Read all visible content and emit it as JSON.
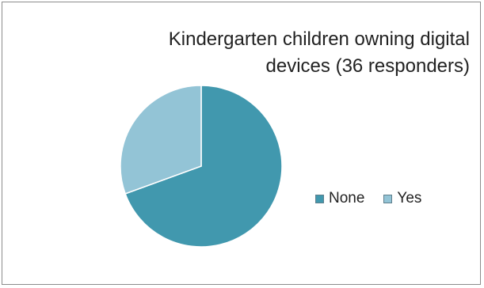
{
  "chart_data": {
    "type": "pie",
    "title_lines": [
      "Kindergarten children owning digital",
      "devices (36 responders)"
    ],
    "categories": [
      "None",
      "Yes"
    ],
    "values": [
      25,
      11
    ],
    "colors": [
      "#4198ae",
      "#93c4d6"
    ],
    "legend_position": "right"
  }
}
